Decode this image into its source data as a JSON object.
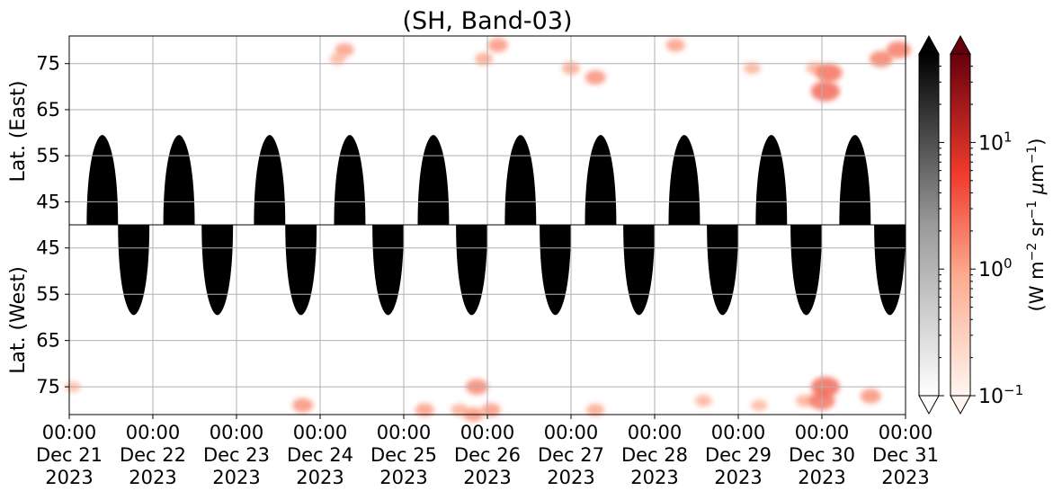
{
  "chart_data": {
    "type": "heatmap",
    "title": "(SH, Band-03)",
    "panels": [
      {
        "name": "east",
        "ylabel": "Lat. (East)",
        "ylim": [
          40,
          81
        ],
        "y_ticks": [
          45,
          55,
          65,
          75
        ],
        "y_tick_labels": [
          "45",
          "55",
          "65",
          "75"
        ]
      },
      {
        "name": "west",
        "ylabel": "Lat. (West)",
        "ylim": [
          81,
          40
        ],
        "y_ticks": [
          75,
          65,
          55,
          45
        ],
        "y_tick_labels": [
          "75",
          "65",
          "55",
          "45"
        ]
      }
    ],
    "xlim": [
      "2023-12-21 00:00",
      "2023-12-31 00:00"
    ],
    "x_ticks": [
      {
        "time": "2023-12-21 00:00",
        "l1": "00:00",
        "l2": "Dec 21",
        "l3": "2023"
      },
      {
        "time": "2023-12-22 00:00",
        "l1": "00:00",
        "l2": "Dec 22",
        "l3": "2023"
      },
      {
        "time": "2023-12-23 00:00",
        "l1": "00:00",
        "l2": "Dec 23",
        "l3": "2023"
      },
      {
        "time": "2023-12-24 00:00",
        "l1": "00:00",
        "l2": "Dec 24",
        "l3": "2023"
      },
      {
        "time": "2023-12-25 00:00",
        "l1": "00:00",
        "l2": "Dec 25",
        "l3": "2023"
      },
      {
        "time": "2023-12-26 00:00",
        "l1": "00:00",
        "l2": "Dec 26",
        "l3": "2023"
      },
      {
        "time": "2023-12-27 00:00",
        "l1": "00:00",
        "l2": "Dec 27",
        "l3": "2023"
      },
      {
        "time": "2023-12-28 00:00",
        "l1": "00:00",
        "l2": "Dec 28",
        "l3": "2023"
      },
      {
        "time": "2023-12-29 00:00",
        "l1": "00:00",
        "l2": "Dec 29",
        "l3": "2023"
      },
      {
        "time": "2023-12-30 00:00",
        "l1": "00:00",
        "l2": "Dec 30",
        "l3": "2023"
      },
      {
        "time": "2023-12-31 00:00",
        "l1": "00:00",
        "l2": "Dec 31",
        "l3": "2023"
      }
    ],
    "grid": true,
    "daylight_mask": {
      "color": "#c8c8c8",
      "east": {
        "lat_range": [
          40,
          59.5
        ],
        "intervals": [
          [
            "2023-12-21 05:00",
            "2023-12-21 14:00"
          ],
          [
            "2023-12-22 03:00",
            "2023-12-22 12:00"
          ],
          [
            "2023-12-23 05:00",
            "2023-12-23 14:00"
          ],
          [
            "2023-12-24 04:00",
            "2023-12-24 13:00"
          ],
          [
            "2023-12-25 04:00",
            "2023-12-25 13:00"
          ],
          [
            "2023-12-26 05:00",
            "2023-12-26 14:00"
          ],
          [
            "2023-12-27 04:00",
            "2023-12-27 13:00"
          ],
          [
            "2023-12-28 04:00",
            "2023-12-28 13:00"
          ],
          [
            "2023-12-29 05:00",
            "2023-12-29 14:00"
          ],
          [
            "2023-12-30 05:00",
            "2023-12-30 14:00"
          ]
        ]
      },
      "west": {
        "lat_range": [
          40,
          59.5
        ],
        "intervals": [
          [
            "2023-12-21 14:00",
            "2023-12-21 23:00"
          ],
          [
            "2023-12-22 14:00",
            "2023-12-22 23:00"
          ],
          [
            "2023-12-23 14:00",
            "2023-12-23 23:00"
          ],
          [
            "2023-12-24 15:00",
            "2023-12-25 00:00"
          ],
          [
            "2023-12-25 15:00",
            "2023-12-26 00:00"
          ],
          [
            "2023-12-26 15:00",
            "2023-12-27 00:00"
          ],
          [
            "2023-12-27 15:00",
            "2023-12-28 00:00"
          ],
          [
            "2023-12-28 15:00",
            "2023-12-29 00:00"
          ],
          [
            "2023-12-29 15:00",
            "2023-12-30 00:00"
          ],
          [
            "2023-12-30 15:00",
            "2023-12-31 00:00"
          ]
        ]
      }
    },
    "emission_patches": [
      {
        "panel": "east",
        "time": "2023-12-24 05:00",
        "lat": 76,
        "value": 0.7
      },
      {
        "panel": "east",
        "time": "2023-12-24 07:00",
        "lat": 78,
        "value": 1.2
      },
      {
        "panel": "east",
        "time": "2023-12-25 23:00",
        "lat": 76,
        "value": 1.0
      },
      {
        "panel": "east",
        "time": "2023-12-26 03:00",
        "lat": 79,
        "value": 1.4
      },
      {
        "panel": "east",
        "time": "2023-12-27 00:00",
        "lat": 74,
        "value": 1.0
      },
      {
        "panel": "east",
        "time": "2023-12-27 07:00",
        "lat": 72,
        "value": 1.5
      },
      {
        "panel": "east",
        "time": "2023-12-28 06:00",
        "lat": 79,
        "value": 1.2
      },
      {
        "panel": "east",
        "time": "2023-12-29 04:00",
        "lat": 74,
        "value": 0.8
      },
      {
        "panel": "east",
        "time": "2023-12-29 22:00",
        "lat": 74,
        "value": 0.9
      },
      {
        "panel": "east",
        "time": "2023-12-30 01:00",
        "lat": 69,
        "value": 3.0
      },
      {
        "panel": "east",
        "time": "2023-12-30 02:00",
        "lat": 73,
        "value": 2.6
      },
      {
        "panel": "east",
        "time": "2023-12-30 17:00",
        "lat": 76,
        "value": 2.0
      },
      {
        "panel": "east",
        "time": "2023-12-30 22:00",
        "lat": 78,
        "value": 2.2
      },
      {
        "panel": "west",
        "time": "2023-12-21 01:00",
        "lat": 75,
        "value": 0.6
      },
      {
        "panel": "west",
        "time": "2023-12-23 19:00",
        "lat": 79,
        "value": 1.5
      },
      {
        "panel": "west",
        "time": "2023-12-25 06:00",
        "lat": 80,
        "value": 1.2
      },
      {
        "panel": "west",
        "time": "2023-12-25 16:00",
        "lat": 80,
        "value": 0.9
      },
      {
        "panel": "west",
        "time": "2023-12-25 20:00",
        "lat": 81,
        "value": 1.4
      },
      {
        "panel": "west",
        "time": "2023-12-26 01:00",
        "lat": 80,
        "value": 1.3
      },
      {
        "panel": "west",
        "time": "2023-12-25 21:00",
        "lat": 75,
        "value": 1.8
      },
      {
        "panel": "west",
        "time": "2023-12-27 07:00",
        "lat": 80,
        "value": 1.0
      },
      {
        "panel": "west",
        "time": "2023-12-28 14:00",
        "lat": 78,
        "value": 0.8
      },
      {
        "panel": "west",
        "time": "2023-12-29 06:00",
        "lat": 79,
        "value": 0.7
      },
      {
        "panel": "west",
        "time": "2023-12-29 19:00",
        "lat": 78,
        "value": 0.9
      },
      {
        "panel": "west",
        "time": "2023-12-30 00:00",
        "lat": 78,
        "value": 2.5
      },
      {
        "panel": "west",
        "time": "2023-12-30 01:00",
        "lat": 75,
        "value": 3.0
      },
      {
        "panel": "west",
        "time": "2023-12-30 14:00",
        "lat": 77,
        "value": 1.5
      }
    ],
    "colorbars": [
      {
        "name": "gray",
        "cmap": "Greys",
        "min_color": "#ffffff",
        "max_color": "#000000",
        "extend": "both"
      },
      {
        "name": "red",
        "cmap": "Reds",
        "min_color": "#fff5f0",
        "max_color": "#67000d",
        "extend": "both"
      }
    ],
    "colorbar_scale": "log",
    "colorbar_range": [
      0.1,
      50
    ],
    "colorbar_ticks": [
      {
        "value": 0.1,
        "base": "10",
        "exp": "−1"
      },
      {
        "value": 1,
        "base": "10",
        "exp": "0"
      },
      {
        "value": 10,
        "base": "10",
        "exp": "1"
      }
    ],
    "colorbar_label_parts": {
      "open": "(W m",
      "exp1": "−2",
      "mid1": " sr",
      "exp2": "−1",
      "mid2": " ",
      "mu": "μ",
      "mid3": "m",
      "exp3": "−1",
      "close": ")"
    }
  }
}
